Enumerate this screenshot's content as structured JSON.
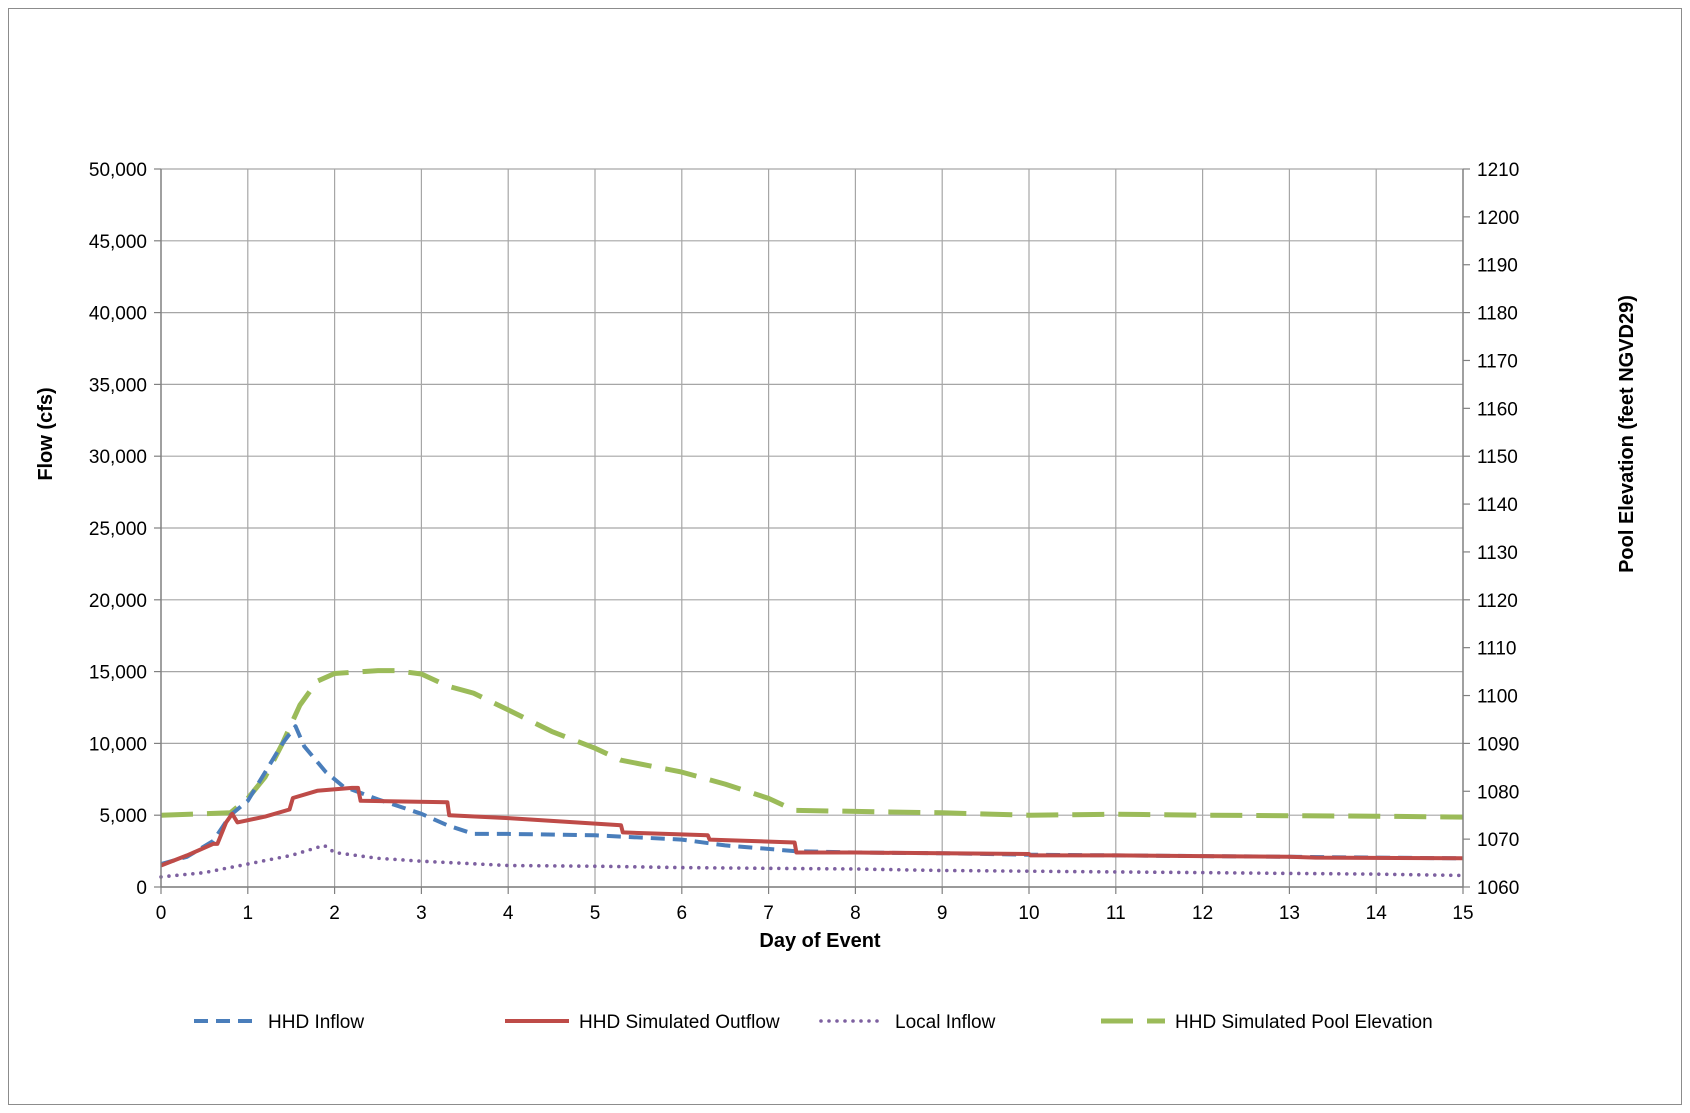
{
  "chart_data": {
    "type": "line",
    "title": "",
    "xlabel": "Day of Event",
    "ylabel": "Flow (cfs)",
    "y2label": "Pool Elevation (feet NGVD29)",
    "xlim": [
      0,
      15
    ],
    "ylim": [
      0,
      50000
    ],
    "y2lim": [
      1060,
      1210
    ],
    "grid": true,
    "legend_position": "bottom",
    "x_ticks": [
      "0",
      "1",
      "2",
      "3",
      "4",
      "5",
      "6",
      "7",
      "8",
      "9",
      "10",
      "11",
      "12",
      "13",
      "14",
      "15"
    ],
    "y_ticks": [
      "0",
      "5,000",
      "10,000",
      "15,000",
      "20,000",
      "25,000",
      "30,000",
      "35,000",
      "40,000",
      "45,000",
      "50,000"
    ],
    "y2_ticks": [
      "1060",
      "1070",
      "1080",
      "1090",
      "1100",
      "1110",
      "1120",
      "1130",
      "1140",
      "1150",
      "1160",
      "1170",
      "1180",
      "1190",
      "1200",
      "1210"
    ],
    "series": [
      {
        "name": "HHD Inflow",
        "axis": "left",
        "color": "#4a7ebb",
        "style": "dashed",
        "points": [
          [
            0,
            1600
          ],
          [
            0.3,
            2100
          ],
          [
            0.6,
            3200
          ],
          [
            0.8,
            5000
          ],
          [
            1,
            6000
          ],
          [
            1.2,
            8000
          ],
          [
            1.4,
            10000
          ],
          [
            1.55,
            11200
          ],
          [
            1.65,
            9800
          ],
          [
            1.9,
            8000
          ],
          [
            2.1,
            7000
          ],
          [
            2.5,
            6100
          ],
          [
            3,
            5100
          ],
          [
            3.3,
            4300
          ],
          [
            3.6,
            3700
          ],
          [
            4,
            3700
          ],
          [
            5,
            3600
          ],
          [
            6,
            3300
          ],
          [
            6.5,
            2900
          ],
          [
            7.3,
            2500
          ],
          [
            8,
            2400
          ],
          [
            9,
            2350
          ],
          [
            10,
            2250
          ],
          [
            11,
            2200
          ],
          [
            12,
            2150
          ],
          [
            13,
            2100
          ],
          [
            14,
            2050
          ],
          [
            15,
            2000
          ]
        ]
      },
      {
        "name": "HHD Simulated Outflow",
        "axis": "left",
        "color": "#be4b48",
        "style": "solid",
        "points": [
          [
            0,
            1500
          ],
          [
            0.3,
            2200
          ],
          [
            0.6,
            3000
          ],
          [
            0.65,
            3000
          ],
          [
            0.75,
            4500
          ],
          [
            0.82,
            5100
          ],
          [
            0.88,
            4500
          ],
          [
            1.2,
            4900
          ],
          [
            1.48,
            5400
          ],
          [
            1.52,
            6200
          ],
          [
            1.8,
            6700
          ],
          [
            2.2,
            6900
          ],
          [
            2.27,
            6900
          ],
          [
            2.3,
            6000
          ],
          [
            3.3,
            5900
          ],
          [
            3.32,
            5000
          ],
          [
            4,
            4800
          ],
          [
            5.3,
            4300
          ],
          [
            5.32,
            3800
          ],
          [
            6.3,
            3600
          ],
          [
            6.32,
            3300
          ],
          [
            7.3,
            3100
          ],
          [
            7.32,
            2400
          ],
          [
            8,
            2400
          ],
          [
            9,
            2350
          ],
          [
            10,
            2300
          ],
          [
            10.02,
            2200
          ],
          [
            11,
            2200
          ],
          [
            12,
            2150
          ],
          [
            13,
            2100
          ],
          [
            13.3,
            2050
          ],
          [
            15,
            2000
          ]
        ]
      },
      {
        "name": "Local Inflow",
        "axis": "left",
        "color": "#7d60a0",
        "style": "dotted",
        "points": [
          [
            0,
            700
          ],
          [
            0.5,
            1000
          ],
          [
            1,
            1600
          ],
          [
            1.5,
            2200
          ],
          [
            1.88,
            2900
          ],
          [
            2,
            2400
          ],
          [
            2.5,
            2000
          ],
          [
            3,
            1800
          ],
          [
            4,
            1500
          ],
          [
            5,
            1450
          ],
          [
            6,
            1350
          ],
          [
            7,
            1300
          ],
          [
            8,
            1250
          ],
          [
            9,
            1150
          ],
          [
            10,
            1100
          ],
          [
            11,
            1050
          ],
          [
            12,
            1000
          ],
          [
            13,
            950
          ],
          [
            14,
            900
          ],
          [
            15,
            800
          ]
        ]
      },
      {
        "name": "HHD Simulated Pool Elevation",
        "axis": "right",
        "color": "#9bbb59",
        "style": "longdash",
        "points": [
          [
            0,
            1075
          ],
          [
            0.8,
            1075.5
          ],
          [
            1,
            1078.5
          ],
          [
            1.2,
            1083
          ],
          [
            1.4,
            1090
          ],
          [
            1.6,
            1098
          ],
          [
            1.8,
            1103
          ],
          [
            2,
            1104.6
          ],
          [
            2.5,
            1105.2
          ],
          [
            2.7,
            1105.2
          ],
          [
            3,
            1104.5
          ],
          [
            3.3,
            1102
          ],
          [
            3.6,
            1100.5
          ],
          [
            4,
            1097
          ],
          [
            4.5,
            1092.5
          ],
          [
            5,
            1089
          ],
          [
            5.3,
            1086.5
          ],
          [
            6,
            1084
          ],
          [
            6.5,
            1081.5
          ],
          [
            7,
            1078.5
          ],
          [
            7.3,
            1076
          ],
          [
            8,
            1075.8
          ],
          [
            9,
            1075.5
          ],
          [
            10,
            1075
          ],
          [
            11,
            1075.2
          ],
          [
            12,
            1075
          ],
          [
            13,
            1074.9
          ],
          [
            14,
            1074.8
          ],
          [
            15,
            1074.6
          ]
        ]
      }
    ]
  }
}
